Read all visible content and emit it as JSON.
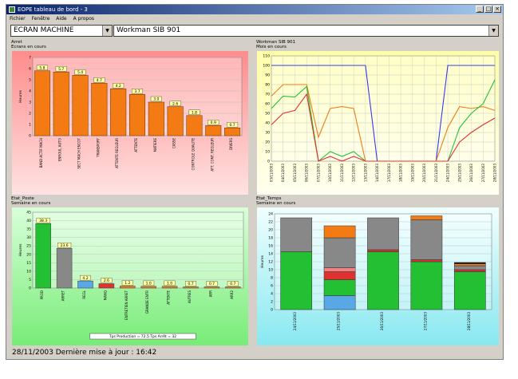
{
  "window": {
    "title": "EOPE tableau de bord - 3",
    "menu": [
      "Fichier",
      "Fenêtre",
      "Aide",
      "A propos"
    ]
  },
  "selectors": {
    "machine": "ECRAN MACHINE",
    "workman": "Workman SIB 901"
  },
  "panels": {
    "arret": {
      "title": "Arret",
      "subtitle": "Ecrans en cours"
    },
    "machine": {
      "title": "Workman SIB 901",
      "subtitle": "Mois en cours"
    },
    "poste": {
      "title": "Etat_Poste",
      "subtitle": "Semaine en cours"
    },
    "temps": {
      "title": "Etat_Temps",
      "subtitle": "Semaine en cours"
    }
  },
  "status": {
    "text": "28/11/2003   Dernière mise à jour : 16:42"
  },
  "colors": {
    "orange": "#f47a14",
    "red": "#e03030",
    "green": "#22c032",
    "blue": "#3838f0",
    "gray": "#888888",
    "lightblue": "#58a8e8",
    "pink_bg_top": "#ff9a9a",
    "yellow_bg": "#ffffb8",
    "green_bg": "#98f098",
    "cyan_bg": "#a8f0f0"
  },
  "chart_data": [
    {
      "type": "bar",
      "title": "Arret",
      "ylabel": "Heures",
      "ylim": [
        0,
        7
      ],
      "yticks": [
        0,
        1,
        2,
        3,
        4,
        5,
        6,
        7
      ],
      "categories": [
        "BAND ACTIF MACH",
        "ENROUL AUTO",
        "SECT MACH ENCOT",
        "TRANSPORT",
        "ATTENTE REGLEUR",
        "ATTENTE",
        "MATIERE",
        "CASSE",
        "CONTROLE QUALITE",
        "ATT. CONT. REGLEUR",
        "DIVERS"
      ],
      "values": [
        5.8,
        5.7,
        5.4,
        4.7,
        4.2,
        3.7,
        3.0,
        2.6,
        1.8,
        0.9,
        0.7
      ],
      "data_labels": [
        "5.8",
        "5.7",
        "5.4",
        "4.7",
        "4.2",
        "3.7",
        "3.0",
        "2.6",
        "1.8",
        "0.9",
        "0.7"
      ]
    },
    {
      "type": "line",
      "title": "Workman SIB 901",
      "ylim": [
        0,
        110
      ],
      "yticks": [
        0,
        10,
        20,
        30,
        40,
        50,
        60,
        70,
        80,
        90,
        100,
        110
      ],
      "x": [
        "03/11/2003",
        "04/11/2003",
        "05/11/2003",
        "06/11/2003",
        "07/11/2003",
        "10/11/2003",
        "11/11/2003",
        "12/11/2003",
        "13/11/2003",
        "14/11/2003",
        "17/11/2003",
        "18/11/2003",
        "19/11/2003",
        "20/11/2003",
        "21/11/2003",
        "24/11/2003",
        "25/11/2003",
        "26/11/2003",
        "27/11/2003",
        "28/11/2003"
      ],
      "series": [
        {
          "color": "#3838f0",
          "values": [
            100,
            100,
            100,
            100,
            100,
            100,
            100,
            100,
            100,
            0,
            0,
            0,
            0,
            0,
            0,
            100,
            100,
            100,
            100,
            100
          ]
        },
        {
          "color": "#f47a14",
          "values": [
            68,
            80,
            80,
            80,
            25,
            55,
            57,
            55,
            0,
            0,
            0,
            0,
            0,
            0,
            0,
            35,
            57,
            55,
            57,
            53
          ]
        },
        {
          "color": "#22c032",
          "values": [
            55,
            68,
            67,
            78,
            0,
            10,
            5,
            10,
            0,
            0,
            0,
            0,
            0,
            0,
            0,
            0,
            35,
            50,
            60,
            85
          ]
        },
        {
          "color": "#e03030",
          "values": [
            38,
            50,
            53,
            70,
            0,
            5,
            0,
            5,
            0,
            0,
            0,
            0,
            0,
            0,
            0,
            0,
            20,
            30,
            38,
            45
          ]
        }
      ]
    },
    {
      "type": "bar",
      "title": "Etat_Poste",
      "ylabel": "Heures",
      "ylim": [
        0,
        45
      ],
      "yticks": [
        0,
        5,
        10,
        15,
        20,
        25,
        30,
        35,
        40,
        45
      ],
      "categories": [
        "PROD",
        "ARRET",
        "REGL",
        "MANQ",
        "ENTRETIEN ARRET",
        "GRANDE ENTR",
        "ATTENTE",
        "AUTRES",
        "ARR",
        "ARR2"
      ],
      "values": [
        38.3,
        23.6,
        4.2,
        2.6,
        1.2,
        1.0,
        1.0,
        0.7,
        0.7,
        0.7
      ],
      "colors": [
        "#22c032",
        "#888888",
        "#58a8e8",
        "#e03030",
        "#f47a14",
        "#f47a14",
        "#f47a14",
        "#f47a14",
        "#f47a14",
        "#f47a14"
      ],
      "data_labels": [
        "38.3",
        "23.6",
        "4.2",
        "2.6",
        "1.2",
        "1.0",
        "1.0",
        "0.7",
        "0.7",
        "0.7"
      ],
      "footnote": "Tps Production = 72.5    Tps Arrêt = 32"
    },
    {
      "type": "bar",
      "title": "Etat_Temps",
      "ylabel": "Heures",
      "ylim": [
        0,
        24
      ],
      "yticks": [
        0,
        2,
        4,
        6,
        8,
        10,
        12,
        14,
        16,
        18,
        20,
        22,
        24
      ],
      "categories": [
        "24/11/2003",
        "25/11/2003",
        "26/11/2003",
        "27/11/2003",
        "28/11/2003"
      ],
      "series": [
        {
          "color": "#58a8e8",
          "values": [
            0,
            3.5,
            0,
            0,
            0
          ]
        },
        {
          "color": "#22c032",
          "values": [
            14.5,
            4,
            14.5,
            12,
            9.5
          ]
        },
        {
          "color": "#e03030",
          "values": [
            0,
            2,
            0.5,
            0.5,
            0.5
          ]
        },
        {
          "color": "#f48080",
          "values": [
            0,
            1,
            0,
            0,
            0
          ]
        },
        {
          "color": "#888888",
          "values": [
            8.5,
            7.5,
            8,
            10,
            1
          ]
        },
        {
          "color": "#f47a14",
          "values": [
            0,
            3,
            0,
            1,
            0.5
          ]
        },
        {
          "color": "#000000",
          "values": [
            0,
            0,
            0,
            0,
            0.3
          ]
        }
      ]
    }
  ]
}
